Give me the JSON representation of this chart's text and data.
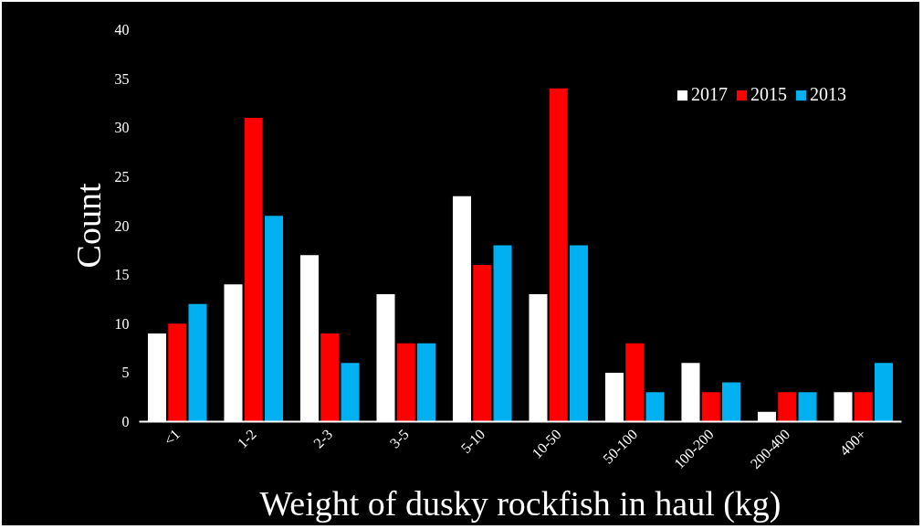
{
  "chart_data": {
    "type": "bar",
    "xlabel": "Weight of dusky rockfish in haul (kg)",
    "ylabel": "Count",
    "categories": [
      "<1",
      "1-2",
      "2-3",
      "3-5",
      "5-10",
      "10-50",
      "50-100",
      "100-200",
      "200-400",
      "400+"
    ],
    "series": [
      {
        "name": "2017",
        "color": "#ffffff",
        "values": [
          9,
          14,
          17,
          13,
          23,
          13,
          5,
          6,
          1,
          3
        ]
      },
      {
        "name": "2015",
        "color": "#ff0000",
        "values": [
          10,
          31,
          9,
          8,
          16,
          34,
          8,
          3,
          3,
          3
        ]
      },
      {
        "name": "2013",
        "color": "#00b0f0",
        "values": [
          12,
          21,
          6,
          8,
          18,
          18,
          3,
          4,
          3,
          6
        ]
      }
    ],
    "ylim": [
      0,
      40
    ],
    "yticks": [
      0,
      5,
      10,
      15,
      20,
      25,
      30,
      35,
      40
    ],
    "grid": false,
    "legend": "top right"
  }
}
